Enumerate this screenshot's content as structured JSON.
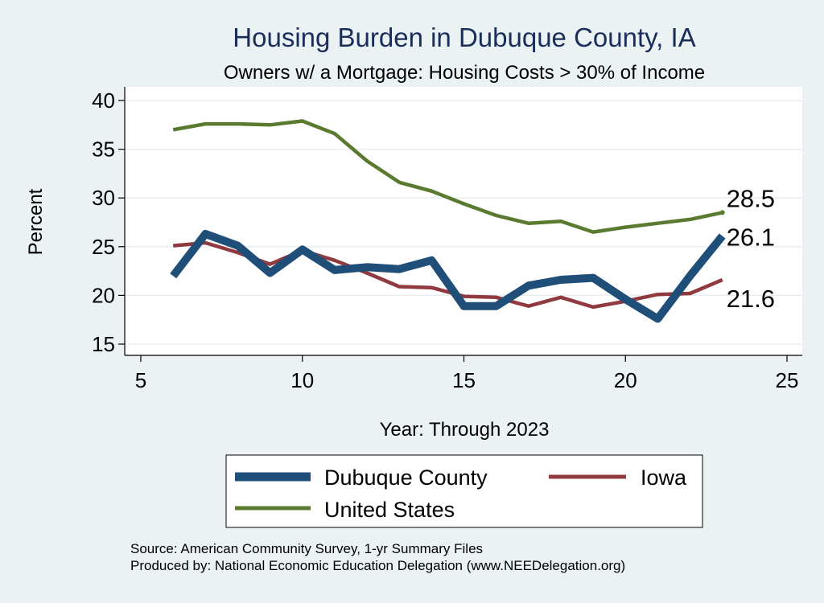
{
  "chart_data": {
    "type": "line",
    "title": "Housing Burden in Dubuque County, IA",
    "subtitle": "Owners w/ a Mortgage: Housing Costs > 30% of Income",
    "xlabel": "Year: Through 2023",
    "ylabel": "Percent",
    "xlim": [
      5,
      25
    ],
    "ylim": [
      15,
      40
    ],
    "x_ticks": [
      5,
      10,
      15,
      20,
      25
    ],
    "y_ticks": [
      15,
      20,
      25,
      30,
      35,
      40
    ],
    "grid": true,
    "legend_position": "bottom",
    "x": [
      6,
      7,
      8,
      9,
      10,
      11,
      12,
      13,
      14,
      15,
      16,
      17,
      18,
      19,
      20,
      21,
      22,
      23
    ],
    "series": [
      {
        "name": "Dubuque County",
        "color": "#1f4e79",
        "values": [
          22.0,
          26.3,
          25.1,
          22.3,
          24.7,
          22.6,
          22.9,
          22.7,
          23.6,
          18.9,
          18.9,
          21.0,
          21.6,
          21.8,
          19.6,
          17.6,
          22.0,
          26.1
        ],
        "end_label": "26.1"
      },
      {
        "name": "Iowa",
        "color": "#903a40",
        "values": [
          25.1,
          25.4,
          24.4,
          23.2,
          24.6,
          23.6,
          22.3,
          20.9,
          20.8,
          19.9,
          19.8,
          18.9,
          19.8,
          18.8,
          19.4,
          20.1,
          20.2,
          21.6
        ],
        "end_label": "21.6"
      },
      {
        "name": "United States",
        "color": "#5a7a30",
        "values": [
          37.0,
          37.6,
          37.6,
          37.5,
          37.9,
          36.6,
          33.8,
          31.6,
          30.7,
          29.4,
          28.2,
          27.4,
          27.6,
          26.5,
          27.0,
          27.4,
          27.8,
          28.5
        ],
        "end_label": "28.5"
      }
    ],
    "legend": [
      "Dubuque County",
      "Iowa",
      "United States"
    ],
    "notes": [
      "Source: American Community Survey, 1-yr Summary Files",
      "Produced by: National Economic Education Delegation (www.NEEDelegation.org)"
    ]
  }
}
